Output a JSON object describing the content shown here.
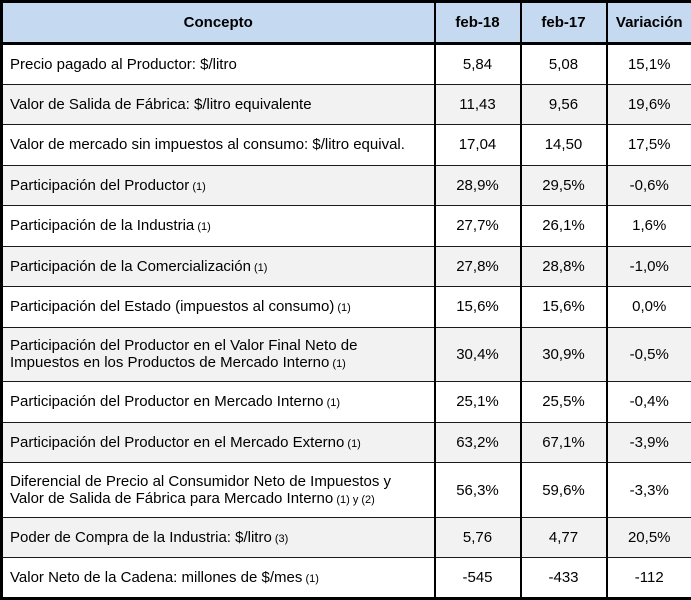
{
  "table": {
    "columns": {
      "concept": "Concepto",
      "feb18": "feb-18",
      "feb17": "feb-17",
      "variacion": "Variación"
    },
    "rows": [
      {
        "concepto": "Precio pagado al Productor: $/litro",
        "note": "",
        "feb18": "5,84",
        "feb17": "5,08",
        "variacion": "15,1%"
      },
      {
        "concepto": "Valor de Salida de Fábrica: $/litro equivalente",
        "note": "",
        "feb18": "11,43",
        "feb17": "9,56",
        "variacion": "19,6%"
      },
      {
        "concepto": "Valor de mercado sin impuestos al consumo: $/litro equival.",
        "note": "",
        "feb18": "17,04",
        "feb17": "14,50",
        "variacion": "17,5%"
      },
      {
        "concepto": "Participación del Productor",
        "note": "(1)",
        "feb18": "28,9%",
        "feb17": "29,5%",
        "variacion": "-0,6%"
      },
      {
        "concepto": "Participación de la Industria",
        "note": "(1)",
        "feb18": "27,7%",
        "feb17": "26,1%",
        "variacion": "1,6%"
      },
      {
        "concepto": "Participación de la Comercialización",
        "note": "(1)",
        "feb18": "27,8%",
        "feb17": "28,8%",
        "variacion": "-1,0%"
      },
      {
        "concepto": "Participación del Estado (impuestos al consumo)",
        "note": "(1)",
        "feb18": "15,6%",
        "feb17": "15,6%",
        "variacion": "0,0%"
      },
      {
        "concepto": "Participación del Productor en el Valor Final Neto de Impuestos en los Productos de Mercado Interno",
        "note": "(1)",
        "feb18": "30,4%",
        "feb17": "30,9%",
        "variacion": "-0,5%"
      },
      {
        "concepto": "Participación del Productor en Mercado Interno",
        "note": "(1)",
        "feb18": "25,1%",
        "feb17": "25,5%",
        "variacion": "-0,4%"
      },
      {
        "concepto": "Participación del Productor en el Mercado Externo",
        "note": "(1)",
        "feb18": "63,2%",
        "feb17": "67,1%",
        "variacion": "-3,9%"
      },
      {
        "concepto": "Diferencial de Precio al Consumidor Neto de Impuestos y Valor de Salida de Fábrica para Mercado Interno",
        "note": "(1) y (2)",
        "feb18": "56,3%",
        "feb17": "59,6%",
        "variacion": "-3,3%"
      },
      {
        "concepto": "Poder de Compra de la Industria: $/litro",
        "note": "(3)",
        "feb18": "5,76",
        "feb17": "4,77",
        "variacion": "20,5%"
      },
      {
        "concepto": "Valor Neto de la Cadena: millones de $/mes",
        "note": "(1)",
        "feb18": "-545",
        "feb17": "-433",
        "variacion": "-112"
      }
    ]
  },
  "colors": {
    "header_bg": "#C5D9F1",
    "stripe_bg": "#F2F2F2",
    "border": "#000000",
    "text": "#000000"
  },
  "chart_data": {
    "type": "table",
    "title": "",
    "columns": [
      "Concepto",
      "feb-18",
      "feb-17",
      "Variación"
    ],
    "rows": [
      [
        "Precio pagado al Productor: $/litro",
        "5,84",
        "5,08",
        "15,1%"
      ],
      [
        "Valor de Salida de Fábrica: $/litro equivalente",
        "11,43",
        "9,56",
        "19,6%"
      ],
      [
        "Valor de mercado sin impuestos al consumo: $/litro equival.",
        "17,04",
        "14,50",
        "17,5%"
      ],
      [
        "Participación del Productor (1)",
        "28,9%",
        "29,5%",
        "-0,6%"
      ],
      [
        "Participación de la Industria (1)",
        "27,7%",
        "26,1%",
        "1,6%"
      ],
      [
        "Participación de la Comercialización (1)",
        "27,8%",
        "28,8%",
        "-1,0%"
      ],
      [
        "Participación del Estado (impuestos al consumo) (1)",
        "15,6%",
        "15,6%",
        "0,0%"
      ],
      [
        "Participación del Productor en el Valor Final Neto de Impuestos en los Productos de Mercado Interno (1)",
        "30,4%",
        "30,9%",
        "-0,5%"
      ],
      [
        "Participación del Productor en Mercado Interno (1)",
        "25,1%",
        "25,5%",
        "-0,4%"
      ],
      [
        "Participación del Productor en el Mercado Externo (1)",
        "63,2%",
        "67,1%",
        "-3,9%"
      ],
      [
        "Diferencial de Precio al Consumidor Neto de Impuestos y Valor de Salida de Fábrica para Mercado Interno (1) y (2)",
        "56,3%",
        "59,6%",
        "-3,3%"
      ],
      [
        "Poder de Compra de la Industria: $/litro (3)",
        "5,76",
        "4,77",
        "20,5%"
      ],
      [
        "Valor Neto de la Cadena: millones de $/mes (1)",
        "-545",
        "-433",
        "-112"
      ]
    ]
  }
}
